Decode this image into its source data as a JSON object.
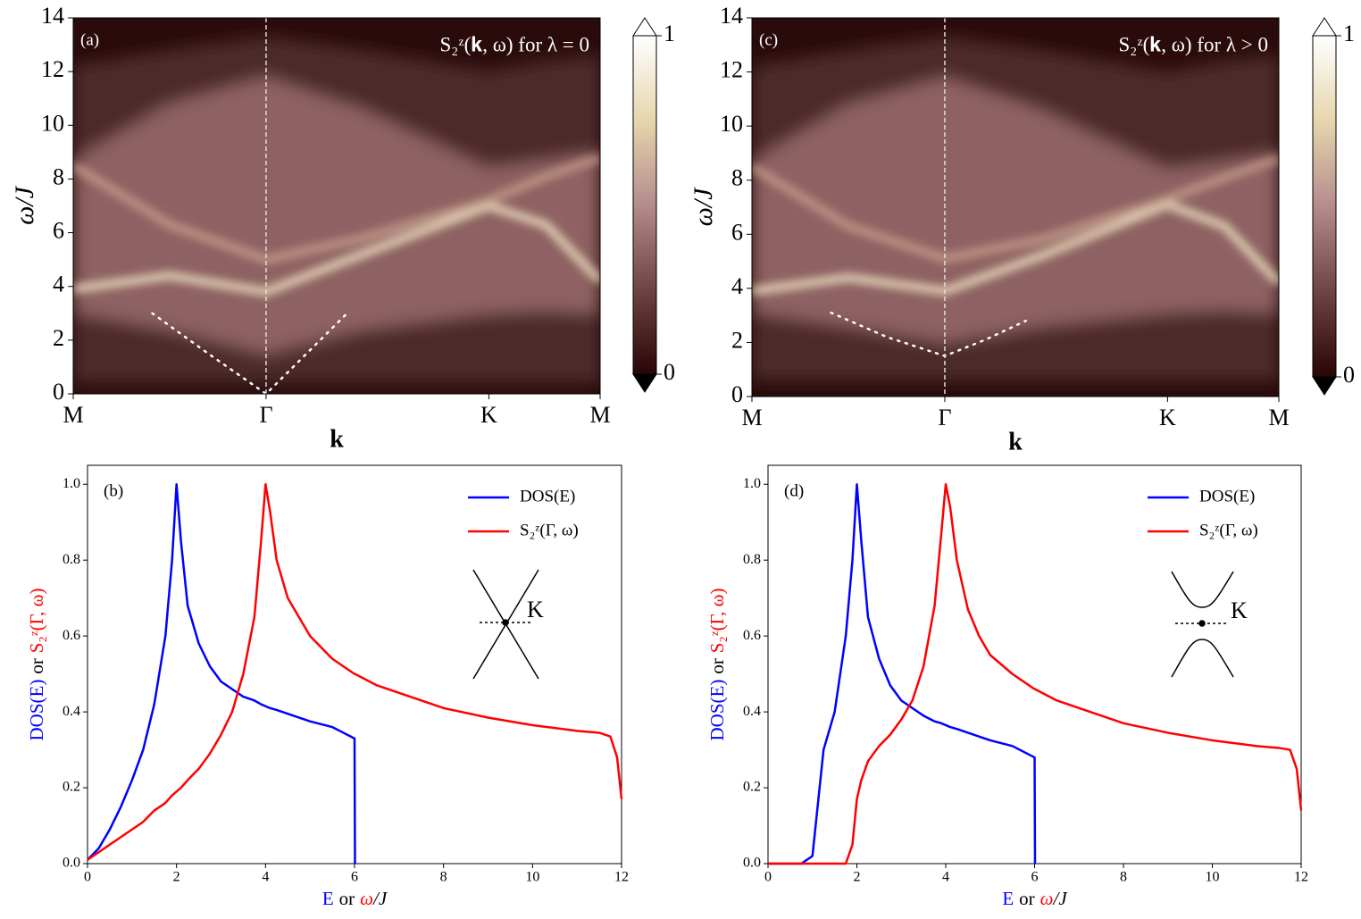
{
  "chart_data": [
    {
      "type": "heatmap",
      "panel_label": "(a)",
      "annotation": "S₂ᶻ(𝐤, ω) for λ = 0",
      "ylabel": "ω/J",
      "xlabel": "k",
      "xlim": [
        0,
        2.732
      ],
      "xticks": [
        {
          "value": 0,
          "label": "M"
        },
        {
          "value": 1,
          "label": "Γ"
        },
        {
          "value": 2.155,
          "label": "K"
        },
        {
          "value": 2.732,
          "label": "M"
        }
      ],
      "ylim": [
        0,
        14
      ],
      "yticks": [
        0,
        2,
        4,
        6,
        8,
        10,
        12,
        14
      ],
      "background": "#2a0b0b",
      "x": [
        0,
        0.5,
        1,
        1.5,
        2.155,
        2.45,
        2.732
      ],
      "bands": [
        {
          "color": "#4e2a2a",
          "lower": [
            0.4,
            0.4,
            0.4,
            0.4,
            0.4,
            0.4,
            0.4
          ],
          "upper": [
            12.2,
            12.8,
            13.3,
            12.8,
            12.0,
            12.4,
            12.6
          ]
        },
        {
          "color": "#8e6262",
          "lower": [
            3.0,
            2.4,
            1.5,
            2.4,
            3.0,
            3.1,
            3.0
          ],
          "upper": [
            8.7,
            10.8,
            11.8,
            10.6,
            8.4,
            8.7,
            9.0
          ]
        }
      ],
      "ridges": [
        {
          "color": "#f2e6c4",
          "values": [
            3.9,
            4.4,
            3.8,
            5.2,
            7.0,
            6.3,
            4.2
          ]
        },
        {
          "color": "#c9a08e",
          "values": [
            8.5,
            6.3,
            5.0,
            5.8,
            7.2,
            8.1,
            8.8
          ]
        }
      ],
      "dispersion": {
        "color": "#ffffff",
        "x": [
          0.41,
          0.7,
          1,
          1.21,
          1.42
        ],
        "values": [
          3.0,
          1.5,
          0,
          1.5,
          3.0
        ]
      },
      "colorbar": {
        "lim": [
          0,
          1
        ],
        "ticks": [
          0,
          1
        ],
        "colors": [
          "#2a0505",
          "#6e4444",
          "#b48c8c",
          "#e6d6ac",
          "#ffffff"
        ]
      }
    },
    {
      "type": "line",
      "panel_label": "(b)",
      "inset_label": "K",
      "ylabel_parts": [
        "DOS(E)",
        "or",
        "S₂ᶻ(Γ, ω)"
      ],
      "ylabel_colors": [
        "#0000ff",
        "#000000",
        "#ff0000"
      ],
      "xlabel_parts": [
        "E",
        "or",
        "ω",
        "/J"
      ],
      "xlabel_colors": [
        "#0000ff",
        "#000000",
        "#ff0000",
        "#000000"
      ],
      "xlim": [
        0,
        12
      ],
      "xticks": [
        0,
        2,
        4,
        6,
        8,
        10,
        12
      ],
      "ylim": [
        0,
        1.05
      ],
      "yticks": [
        {
          "value": 0,
          "label": "0.0"
        },
        0.2,
        0.4,
        0.6,
        0.8,
        {
          "value": 1,
          "label": "1.0"
        }
      ],
      "legend": "upper right",
      "x": [
        0,
        0.25,
        0.5,
        0.75,
        1,
        1.25,
        1.5,
        1.75,
        1.9,
        2,
        2.1,
        2.25,
        2.5,
        2.75,
        3,
        3.25,
        3.5,
        3.75,
        3.9,
        4,
        4.1,
        4.25,
        4.5,
        4.75,
        5,
        5.5,
        6,
        6.01,
        6.5,
        7,
        8,
        9,
        10,
        11,
        11.5,
        11.75,
        11.9,
        12
      ],
      "series": [
        {
          "name": "DOS(E)",
          "color": "#0000ff",
          "values": [
            0.01,
            0.04,
            0.09,
            0.15,
            0.22,
            0.3,
            0.42,
            0.6,
            0.8,
            1.0,
            0.85,
            0.68,
            0.58,
            0.52,
            0.48,
            0.46,
            0.44,
            0.43,
            0.42,
            0.415,
            0.41,
            0.405,
            0.395,
            0.385,
            0.375,
            0.36,
            0.33,
            0,
            null,
            null,
            null,
            null,
            null,
            null,
            null,
            null,
            null,
            null
          ]
        },
        {
          "name": "S₂ᶻ(Γ, ω)",
          "color": "#ff0000",
          "values": [
            0.01,
            0.03,
            0.05,
            0.07,
            0.09,
            0.11,
            0.14,
            0.16,
            0.18,
            0.19,
            0.2,
            0.22,
            0.25,
            0.29,
            0.34,
            0.4,
            0.5,
            0.65,
            0.85,
            1.0,
            0.93,
            0.8,
            0.7,
            0.65,
            0.6,
            0.54,
            0.5,
            0.5,
            0.47,
            0.45,
            0.41,
            0.385,
            0.365,
            0.35,
            0.345,
            0.335,
            0.28,
            0.17
          ]
        }
      ]
    },
    {
      "type": "heatmap",
      "panel_label": "(c)",
      "annotation": "S₂ᶻ(𝐤, ω) for λ > 0",
      "ylabel": "ω/J",
      "xlabel": "k",
      "xlim": [
        0,
        2.732
      ],
      "xticks": [
        {
          "value": 0,
          "label": "M"
        },
        {
          "value": 1,
          "label": "Γ"
        },
        {
          "value": 2.155,
          "label": "K"
        },
        {
          "value": 2.732,
          "label": "M"
        }
      ],
      "ylim": [
        0,
        14
      ],
      "yticks": [
        0,
        2,
        4,
        6,
        8,
        10,
        12,
        14
      ],
      "background": "#2a0b0b",
      "x": [
        0,
        0.5,
        1,
        1.5,
        2.155,
        2.45,
        2.732
      ],
      "bands": [
        {
          "color": "#4e2a2a",
          "lower": [
            0.6,
            0.6,
            0.6,
            0.6,
            0.6,
            0.6,
            0.6
          ],
          "upper": [
            12.2,
            12.8,
            13.3,
            12.8,
            12.0,
            12.4,
            12.6
          ]
        },
        {
          "color": "#8e6262",
          "lower": [
            3.1,
            2.6,
            2.0,
            2.6,
            3.1,
            3.2,
            3.1
          ],
          "upper": [
            8.7,
            10.8,
            11.8,
            10.6,
            8.4,
            8.7,
            9.0
          ]
        }
      ],
      "ridges": [
        {
          "color": "#f2e6c4",
          "values": [
            3.9,
            4.4,
            3.9,
            5.2,
            7.1,
            6.3,
            4.2
          ]
        },
        {
          "color": "#c9a08e",
          "values": [
            8.5,
            6.3,
            5.1,
            5.8,
            7.3,
            8.1,
            8.8
          ]
        }
      ],
      "dispersion": {
        "color": "#ffffff",
        "x": [
          0.41,
          0.7,
          1,
          1.21,
          1.42
        ],
        "values": [
          3.1,
          2.2,
          1.5,
          2.1,
          2.8
        ]
      },
      "colorbar": {
        "lim": [
          0,
          1
        ],
        "ticks": [
          0,
          1
        ],
        "colors": [
          "#2a0505",
          "#6e4444",
          "#b48c8c",
          "#e6d6ac",
          "#ffffff"
        ]
      }
    },
    {
      "type": "line",
      "panel_label": "(d)",
      "inset_label": "K",
      "ylabel_parts": [
        "DOS(E)",
        "or",
        "S₂ᶻ(Γ, ω)"
      ],
      "ylabel_colors": [
        "#0000ff",
        "#000000",
        "#ff0000"
      ],
      "xlabel_parts": [
        "E",
        "or",
        "ω",
        "/J"
      ],
      "xlabel_colors": [
        "#0000ff",
        "#000000",
        "#ff0000",
        "#000000"
      ],
      "xlim": [
        0,
        12
      ],
      "xticks": [
        0,
        2,
        4,
        6,
        8,
        10,
        12
      ],
      "ylim": [
        0,
        1.05
      ],
      "yticks": [
        {
          "value": 0,
          "label": "0.0"
        },
        0.2,
        0.4,
        0.6,
        0.8,
        {
          "value": 1,
          "label": "1.0"
        }
      ],
      "legend": "upper right",
      "x": [
        0,
        0.25,
        0.5,
        0.75,
        1,
        1.25,
        1.5,
        1.75,
        1.9,
        2,
        2.1,
        2.25,
        2.5,
        2.75,
        3,
        3.25,
        3.5,
        3.75,
        3.9,
        4,
        4.1,
        4.25,
        4.5,
        4.75,
        5,
        5.5,
        6,
        6.01,
        6.5,
        7,
        8,
        9,
        10,
        11,
        11.5,
        11.75,
        11.9,
        12
      ],
      "series": [
        {
          "name": "DOS(E)",
          "color": "#0000ff",
          "values": [
            0,
            0,
            0,
            0,
            0.02,
            0.3,
            0.4,
            0.6,
            0.8,
            1.0,
            0.85,
            0.65,
            0.54,
            0.47,
            0.43,
            0.41,
            0.39,
            0.375,
            0.37,
            0.365,
            0.36,
            0.355,
            0.345,
            0.335,
            0.325,
            0.31,
            0.28,
            0,
            null,
            null,
            null,
            null,
            null,
            null,
            null,
            null,
            null,
            null
          ]
        },
        {
          "name": "S₂ᶻ(Γ, ω)",
          "color": "#ff0000",
          "values": [
            0,
            0,
            0,
            0,
            0,
            0,
            0,
            0,
            0.05,
            0.17,
            0.22,
            0.27,
            0.31,
            0.34,
            0.38,
            0.43,
            0.52,
            0.68,
            0.87,
            1.0,
            0.94,
            0.8,
            0.67,
            0.6,
            0.55,
            0.5,
            0.46,
            0.46,
            0.43,
            0.41,
            0.37,
            0.345,
            0.325,
            0.31,
            0.305,
            0.3,
            0.25,
            0.14
          ]
        }
      ]
    }
  ]
}
